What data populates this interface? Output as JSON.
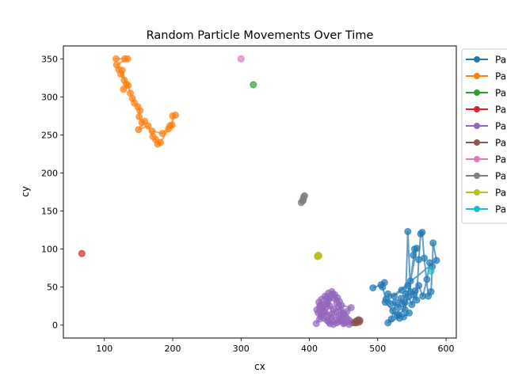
{
  "chart_data": {
    "type": "scatter",
    "title": "Random Particle Movements Over Time",
    "xlabel": "cx",
    "ylabel": "cy",
    "xlim": [
      40,
      615
    ],
    "ylim": [
      -17,
      367
    ],
    "xticks": [
      100,
      200,
      300,
      400,
      500,
      600
    ],
    "yticks": [
      0,
      50,
      100,
      150,
      200,
      250,
      300,
      350
    ],
    "grid": false,
    "legend_position": "outside-right",
    "series": [
      {
        "name": "Pa",
        "color": "#1f77b4",
        "points": [
          [
            493,
            49
          ],
          [
            505,
            53
          ],
          [
            510,
            56
          ],
          [
            507,
            50
          ],
          [
            512,
            34
          ],
          [
            519,
            28
          ],
          [
            515,
            41
          ],
          [
            524,
            38
          ],
          [
            535,
            46
          ],
          [
            544,
            52
          ],
          [
            548,
            58
          ],
          [
            554,
            100
          ],
          [
            552,
            92
          ],
          [
            557,
            101
          ],
          [
            540,
            20
          ],
          [
            530,
            14
          ],
          [
            538,
            11
          ],
          [
            546,
            16
          ],
          [
            515,
            3
          ],
          [
            520,
            8
          ],
          [
            526,
            30
          ],
          [
            530,
            23
          ],
          [
            534,
            35
          ],
          [
            536,
            28
          ],
          [
            541,
            41
          ],
          [
            544,
            123
          ],
          [
            548,
            44
          ],
          [
            552,
            40
          ],
          [
            557,
            33
          ],
          [
            560,
            86
          ],
          [
            563,
            120
          ],
          [
            565,
            122
          ],
          [
            568,
            88
          ],
          [
            574,
            38
          ],
          [
            578,
            44
          ],
          [
            580,
            77
          ],
          [
            581,
            108
          ],
          [
            586,
            85
          ],
          [
            511,
            30
          ],
          [
            522,
            19
          ],
          [
            528,
            13
          ],
          [
            532,
            9
          ],
          [
            540,
            30
          ],
          [
            545,
            37
          ],
          [
            550,
            27
          ],
          [
            555,
            45
          ],
          [
            560,
            52
          ],
          [
            566,
            38
          ],
          [
            572,
            60
          ],
          [
            576,
            82
          ]
        ]
      },
      {
        "name": "Pa",
        "color": "#ff7f0e",
        "points": [
          [
            117,
            350
          ],
          [
            130,
            350
          ],
          [
            134,
            350
          ],
          [
            118,
            342
          ],
          [
            121,
            336
          ],
          [
            124,
            330
          ],
          [
            129,
            322
          ],
          [
            126,
            335
          ],
          [
            132,
            317
          ],
          [
            128,
            310
          ],
          [
            135,
            315
          ],
          [
            138,
            305
          ],
          [
            141,
            298
          ],
          [
            144,
            292
          ],
          [
            149,
            287
          ],
          [
            152,
            282
          ],
          [
            151,
            274
          ],
          [
            155,
            266
          ],
          [
            159,
            268
          ],
          [
            150,
            257
          ],
          [
            164,
            262
          ],
          [
            171,
            248
          ],
          [
            175,
            244
          ],
          [
            178,
            238
          ],
          [
            182,
            240
          ],
          [
            194,
            258
          ],
          [
            199,
            263
          ],
          [
            200,
            275
          ],
          [
            204,
            276
          ],
          [
            196,
            262
          ],
          [
            185,
            252
          ],
          [
            170,
            255
          ]
        ]
      },
      {
        "name": "Pa",
        "color": "#2ca02c",
        "points": [
          [
            318,
            316
          ]
        ]
      },
      {
        "name": "Pa",
        "color": "#d62728",
        "points": [
          [
            67,
            94
          ]
        ]
      },
      {
        "name": "Pa",
        "color": "#9467bd",
        "points": [
          [
            410,
            2
          ],
          [
            415,
            8
          ],
          [
            418,
            14
          ],
          [
            421,
            18
          ],
          [
            424,
            23
          ],
          [
            426,
            28
          ],
          [
            428,
            33
          ],
          [
            431,
            36
          ],
          [
            434,
            41
          ],
          [
            437,
            35
          ],
          [
            440,
            29
          ],
          [
            443,
            24
          ],
          [
            446,
            20
          ],
          [
            449,
            16
          ],
          [
            452,
            12
          ],
          [
            455,
            9
          ],
          [
            459,
            6
          ],
          [
            462,
            3
          ],
          [
            458,
            1
          ],
          [
            450,
            2
          ],
          [
            444,
            5
          ],
          [
            438,
            7
          ],
          [
            432,
            10
          ],
          [
            427,
            13
          ],
          [
            423,
            17
          ],
          [
            419,
            21
          ],
          [
            416,
            26
          ],
          [
            414,
            30
          ],
          [
            418,
            34
          ],
          [
            423,
            38
          ],
          [
            428,
            42
          ],
          [
            433,
            44
          ],
          [
            437,
            40
          ],
          [
            441,
            36
          ],
          [
            444,
            31
          ],
          [
            447,
            26
          ],
          [
            461,
            23
          ],
          [
            455,
            18
          ],
          [
            450,
            14
          ],
          [
            445,
            9
          ],
          [
            440,
            3
          ],
          [
            435,
            1
          ],
          [
            430,
            2
          ],
          [
            426,
            6
          ],
          [
            421,
            9
          ],
          [
            417,
            12
          ],
          [
            413,
            16
          ],
          [
            411,
            20
          ],
          [
            415,
            24
          ],
          [
            420,
            27
          ],
          [
            425,
            30
          ],
          [
            430,
            25
          ],
          [
            436,
            21
          ],
          [
            439,
            17
          ],
          [
            443,
            12
          ],
          [
            448,
            6
          ],
          [
            452,
            3
          ],
          [
            429,
            4
          ],
          [
            433,
            15
          ],
          [
            426,
            37
          ]
        ]
      },
      {
        "name": "Pa",
        "color": "#8c564b",
        "points": [
          [
            466,
            3
          ],
          [
            468,
            5
          ],
          [
            470,
            6
          ],
          [
            472,
            7
          ],
          [
            474,
            6
          ],
          [
            473,
            4
          ],
          [
            469,
            3
          ],
          [
            471,
            5
          ]
        ]
      },
      {
        "name": "Pa",
        "color": "#e377c2",
        "points": [
          [
            300,
            350
          ]
        ]
      },
      {
        "name": "Pa",
        "color": "#7f7f7f",
        "points": [
          [
            388,
            161
          ],
          [
            390,
            163
          ],
          [
            391,
            166
          ],
          [
            392,
            169
          ],
          [
            393,
            170
          ],
          [
            391,
            164
          ]
        ]
      },
      {
        "name": "Pa",
        "color": "#bcbd22",
        "points": [
          [
            412,
            90
          ],
          [
            413,
            92
          ],
          [
            414,
            91
          ],
          [
            412,
            91
          ]
        ]
      },
      {
        "name": "Pa",
        "color": "#17becf",
        "points": [
          [
            578,
            71
          ]
        ]
      }
    ]
  }
}
